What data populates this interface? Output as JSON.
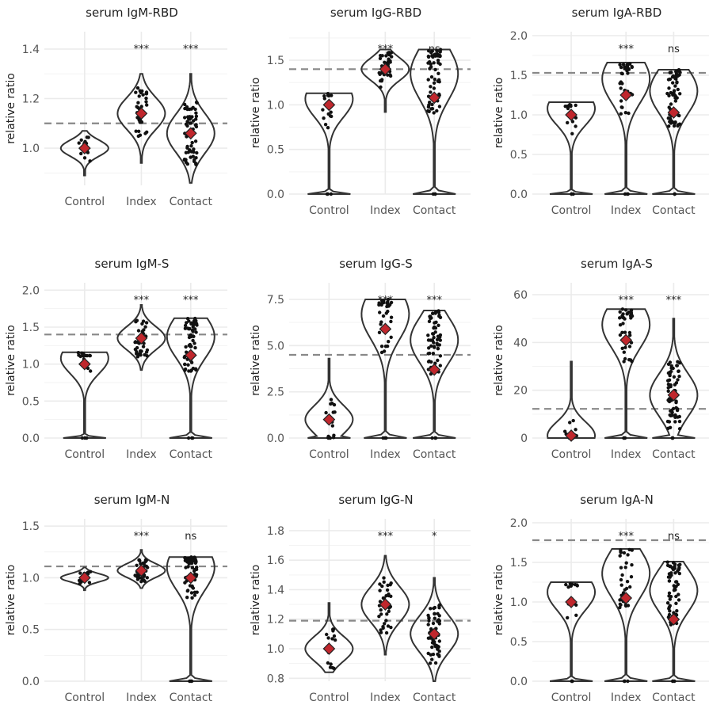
{
  "chart_data": [
    {
      "type": "violin",
      "title": "serum IgM-RBD",
      "ylabel": "relative ratio",
      "categories": [
        "Control",
        "Index",
        "Contact"
      ],
      "ylim": [
        0.85,
        1.47
      ],
      "yticks": [
        1.0,
        1.2,
        1.4
      ],
      "yticklabels": [
        "1.0",
        "1.2",
        "1.4"
      ],
      "threshold": 1.1,
      "means": [
        1.0,
        1.14,
        1.06
      ],
      "ranges": [
        [
          0.89,
          1.07
        ],
        [
          0.94,
          1.3
        ],
        [
          0.86,
          1.3
        ]
      ],
      "significance": [
        "",
        "***",
        "***"
      ]
    },
    {
      "type": "violin",
      "title": "serum IgG-RBD",
      "ylabel": "relative ratio",
      "categories": [
        "Control",
        "Index",
        "Contact"
      ],
      "ylim": [
        0,
        1.82
      ],
      "yticks": [
        0,
        0.5,
        1.0,
        1.5
      ],
      "yticklabels": [
        "0.0",
        "0.5",
        "1.0",
        "1.5"
      ],
      "threshold": 1.4,
      "means": [
        1.0,
        1.4,
        1.08
      ],
      "ranges": [
        [
          0,
          1.13
        ],
        [
          0.92,
          1.62
        ],
        [
          0,
          1.62
        ]
      ],
      "significance": [
        "",
        "***",
        "ns"
      ]
    },
    {
      "type": "violin",
      "title": "serum IgA-RBD",
      "ylabel": "relative ratio",
      "categories": [
        "Control",
        "Index",
        "Contact"
      ],
      "ylim": [
        0,
        2.05
      ],
      "yticks": [
        0,
        0.5,
        1.0,
        1.5,
        2.0
      ],
      "yticklabels": [
        "0.0",
        "0.5",
        "1.0",
        "1.5",
        "2.0"
      ],
      "threshold": 1.53,
      "means": [
        1.0,
        1.25,
        1.03
      ],
      "ranges": [
        [
          0,
          1.16
        ],
        [
          0,
          1.66
        ],
        [
          0,
          1.57
        ]
      ],
      "significance": [
        "",
        "***",
        "ns"
      ]
    },
    {
      "type": "violin",
      "title": "serum IgM-S",
      "ylabel": "relative ratio",
      "categories": [
        "Control",
        "Index",
        "Contact"
      ],
      "ylim": [
        0,
        2.1
      ],
      "yticks": [
        0,
        0.5,
        1.0,
        1.5,
        2.0
      ],
      "yticklabels": [
        "0.0",
        "0.5",
        "1.0",
        "1.5",
        "2.0"
      ],
      "threshold": 1.4,
      "means": [
        1.0,
        1.35,
        1.12
      ],
      "ranges": [
        [
          0,
          1.16
        ],
        [
          0.92,
          1.8
        ],
        [
          0,
          1.62
        ]
      ],
      "significance": [
        "",
        "***",
        "***"
      ]
    },
    {
      "type": "violin",
      "title": "serum IgG-S",
      "ylabel": "relative ratio",
      "categories": [
        "Control",
        "Index",
        "Contact"
      ],
      "ylim": [
        0,
        8.4
      ],
      "yticks": [
        0,
        2.5,
        5.0,
        7.5
      ],
      "yticklabels": [
        "0.0",
        "2.5",
        "5.0",
        "7.5"
      ],
      "threshold": 4.5,
      "means": [
        1.0,
        5.9,
        3.7
      ],
      "ranges": [
        [
          0,
          4.3
        ],
        [
          0,
          7.5
        ],
        [
          0,
          6.9
        ]
      ],
      "significance": [
        "",
        "***",
        "***"
      ]
    },
    {
      "type": "violin",
      "title": "serum IgA-S",
      "ylabel": "relative ratio",
      "categories": [
        "Control",
        "Index",
        "Contact"
      ],
      "ylim": [
        0,
        65
      ],
      "yticks": [
        0,
        20,
        40,
        60
      ],
      "yticklabels": [
        "0",
        "20",
        "40",
        "60"
      ],
      "threshold": 12.2,
      "means": [
        1.0,
        41.0,
        18.0
      ],
      "ranges": [
        [
          0,
          32
        ],
        [
          0,
          54
        ],
        [
          0,
          50
        ]
      ],
      "significance": [
        "",
        "***",
        "***"
      ]
    },
    {
      "type": "violin",
      "title": "serum IgM-N",
      "ylabel": "relative ratio",
      "categories": [
        "Control",
        "Index",
        "Contact"
      ],
      "ylim": [
        0,
        1.57
      ],
      "yticks": [
        0,
        0.5,
        1.0,
        1.5
      ],
      "yticklabels": [
        "0.0",
        "0.5",
        "1.0",
        "1.5"
      ],
      "threshold": 1.11,
      "means": [
        1.0,
        1.07,
        1.0
      ],
      "ranges": [
        [
          0.88,
          1.1
        ],
        [
          0.9,
          1.27
        ],
        [
          0,
          1.2
        ]
      ],
      "significance": [
        "",
        "***",
        "ns"
      ]
    },
    {
      "type": "violin",
      "title": "serum IgG-N",
      "ylabel": "relative ratio",
      "categories": [
        "Control",
        "Index",
        "Contact"
      ],
      "ylim": [
        0.78,
        1.88
      ],
      "yticks": [
        0.8,
        1.0,
        1.2,
        1.4,
        1.6,
        1.8
      ],
      "yticklabels": [
        "0.8",
        "1.0",
        "1.2",
        "1.4",
        "1.6",
        "1.8"
      ],
      "threshold": 1.19,
      "means": [
        1.0,
        1.3,
        1.1
      ],
      "ranges": [
        [
          0.84,
          1.31
        ],
        [
          0.96,
          1.63
        ],
        [
          0.78,
          1.48
        ]
      ],
      "significance": [
        "",
        "***",
        "*"
      ]
    },
    {
      "type": "violin",
      "title": "serum IgA-N",
      "ylabel": "relative ratio",
      "categories": [
        "Control",
        "Index",
        "Contact"
      ],
      "ylim": [
        0,
        2.05
      ],
      "yticks": [
        0,
        0.5,
        1.0,
        1.5,
        2.0
      ],
      "yticklabels": [
        "0.0",
        "0.5",
        "1.0",
        "1.5",
        "2.0"
      ],
      "threshold": 1.78,
      "means": [
        1.0,
        1.05,
        0.78
      ],
      "ranges": [
        [
          0,
          1.25
        ],
        [
          0,
          1.67
        ],
        [
          0,
          1.51
        ]
      ],
      "significance": [
        "",
        "***",
        "ns"
      ]
    }
  ],
  "colors": {
    "violin": "#333333",
    "point": "#111111",
    "mean_fill": "#c0272d",
    "mean_stroke": "#222222",
    "threshold": "#888888",
    "grid": "#ebebeb"
  }
}
